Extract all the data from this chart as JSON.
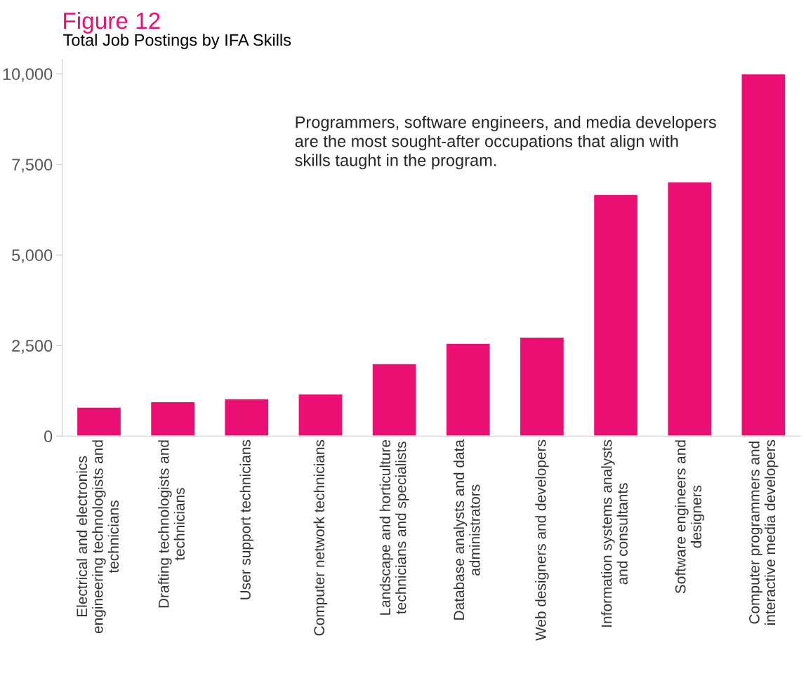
{
  "chart_data": {
    "type": "bar",
    "title": "Figure 12",
    "subtitle": "Total Job Postings by IFA Skills",
    "categories": [
      "Electrical and electronics\nengineering technologists and\ntechnicians",
      "Drafting technologists and\ntechnicians",
      "User support technicians",
      "Computer network technicians",
      "Landscape and horticulture\ntechnicians and specialists",
      "Database analysts and data\nadministrators",
      "Web designers and developers",
      "Information systems analysts\nand consultants",
      "Software engineers and\ndesigners",
      "Computer programmers and\ninteractive media developers"
    ],
    "values": [
      800,
      950,
      1030,
      1160,
      2000,
      2560,
      2730,
      6670,
      7020,
      10000
    ],
    "color": "#ec0f73",
    "ylim": [
      0,
      10400
    ],
    "yticks": [
      0,
      {
        "value": 2500,
        "label": "2,500"
      },
      {
        "value": 5000,
        "label": "5,000"
      },
      {
        "value": 7500,
        "label": "7,500"
      },
      {
        "value": 10000,
        "label": "10,000"
      }
    ],
    "grid": false,
    "legend": false,
    "annotations": [
      "Programmers, software engineers, and media developers\nare the most sought-after occupations that align with\nskills taught in the program."
    ]
  }
}
